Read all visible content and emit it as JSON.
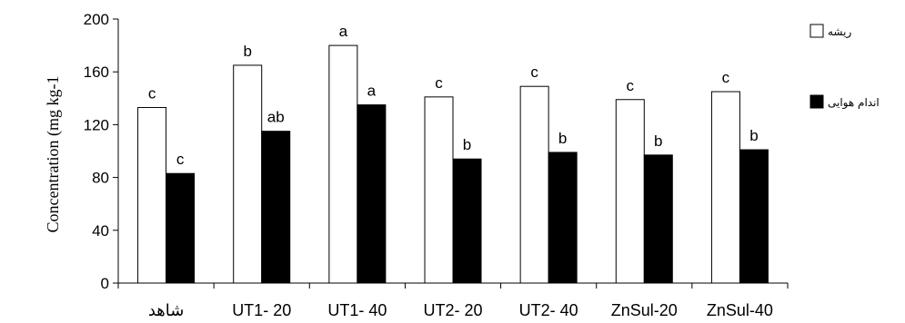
{
  "chart_data": {
    "type": "bar",
    "title": "",
    "xlabel": "",
    "ylabel": "Concentration (mg kg-1",
    "ylim": [
      0,
      200
    ],
    "yticks": [
      0,
      40,
      80,
      120,
      160,
      200
    ],
    "grid": false,
    "legend_position": "top-right",
    "categories": [
      "شاهد",
      "UT1- 20",
      "UT1- 40",
      "UT2- 20",
      "UT2- 40",
      "ZnSul-20",
      "ZnSul-40"
    ],
    "series": [
      {
        "name": "ریشه",
        "color": "#ffffff",
        "values": [
          133,
          165,
          180,
          141,
          149,
          139,
          145
        ],
        "labels": [
          "c",
          "b",
          "a",
          "c",
          "c",
          "c",
          "c"
        ]
      },
      {
        "name": "اندام هوایی",
        "color": "#000000",
        "values": [
          83,
          115,
          135,
          94,
          99,
          97,
          101
        ],
        "labels": [
          "c",
          "ab",
          "a",
          "b",
          "b",
          "b",
          "b"
        ]
      }
    ]
  }
}
